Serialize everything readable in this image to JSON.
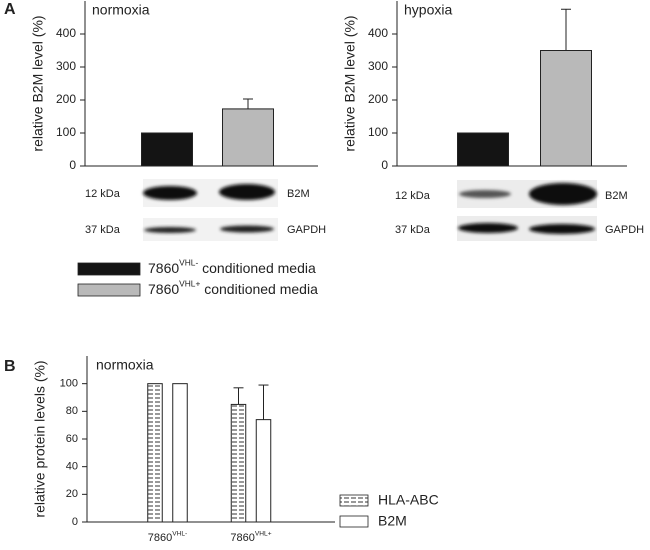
{
  "panel_labels": [
    "A",
    "B"
  ],
  "chart_data": [
    {
      "type": "bar",
      "title": "normoxia",
      "ylabel": "relative B2M level (%)",
      "ylim": [
        0,
        500
      ],
      "yticks": [
        0,
        100,
        200,
        300,
        400
      ],
      "series": [
        {
          "color": "#141414",
          "values": [
            100
          ]
        },
        {
          "color": "#b9b9b9",
          "values": [
            173
          ],
          "errors": [
            30
          ]
        }
      ]
    },
    {
      "type": "bar",
      "title": "hypoxia",
      "ylabel": "relative B2M level (%)",
      "ylim": [
        0,
        500
      ],
      "yticks": [
        0,
        100,
        200,
        300,
        400
      ],
      "series": [
        {
          "color": "#141414",
          "values": [
            100
          ]
        },
        {
          "color": "#b9b9b9",
          "values": [
            350
          ],
          "errors": [
            125
          ]
        }
      ]
    },
    {
      "type": "bar",
      "title": "normoxia",
      "ylabel": "relative protein levels (%)",
      "ylim": [
        0,
        120
      ],
      "yticks": [
        0,
        20,
        40,
        60,
        80,
        100
      ],
      "categories": [
        {
          "label": "7860",
          "sup": "VHL-"
        },
        {
          "label": "7860",
          "sup": "VHL+"
        }
      ],
      "series": [
        {
          "name": "HLA-ABC",
          "color": "#ffffff",
          "pattern": "hatched",
          "values": [
            100,
            85
          ],
          "errors": [
            null,
            12
          ]
        },
        {
          "name": "B2M",
          "color": "#ffffff",
          "values": [
            100,
            74
          ],
          "errors": [
            null,
            25
          ]
        }
      ]
    }
  ],
  "blots": [
    {
      "rows": [
        {
          "size": "12 kDa",
          "protein": "B2M"
        },
        {
          "size": "37 kDa",
          "protein": "GAPDH"
        }
      ]
    },
    {
      "rows": [
        {
          "size": "12 kDa",
          "protein": "B2M"
        },
        {
          "size": "37 kDa",
          "protein": "GAPDH"
        }
      ]
    }
  ],
  "legend": [
    {
      "label": "7860",
      "sup": "VHL-",
      "rest": " conditioned media"
    },
    {
      "label": "7860",
      "sup": "VHL+",
      "rest": " conditioned media"
    }
  ]
}
